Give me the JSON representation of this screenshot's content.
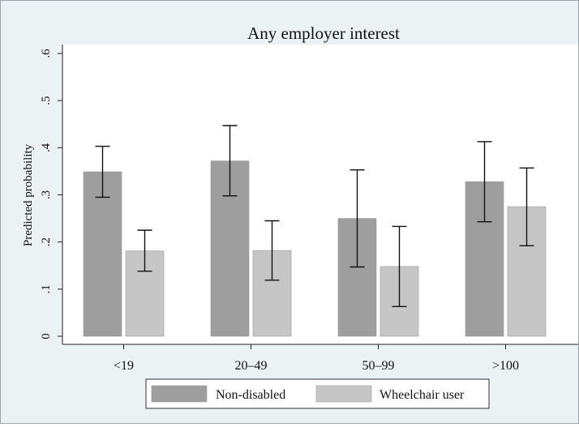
{
  "chart_data": {
    "type": "bar",
    "title": "Any employer interest",
    "xlabel": "",
    "ylabel": "Predicted probability",
    "ylim": [
      0,
      0.6
    ],
    "yticks": [
      0,
      0.1,
      0.2,
      0.3,
      0.4,
      0.5,
      0.6
    ],
    "ytick_labels": [
      "0",
      ".1",
      ".2",
      ".3",
      ".4",
      ".5",
      ".6"
    ],
    "categories": [
      "<19",
      "20–49",
      "50–99",
      ">100"
    ],
    "series": [
      {
        "name": "Non-disabled",
        "color": "#9e9e9e",
        "values": [
          0.349,
          0.372,
          0.25,
          0.328
        ],
        "ci_low": [
          0.295,
          0.298,
          0.147,
          0.243
        ],
        "ci_high": [
          0.403,
          0.447,
          0.353,
          0.413
        ]
      },
      {
        "name": "Wheelchair user",
        "color": "#c6c6c6",
        "values": [
          0.181,
          0.182,
          0.148,
          0.275
        ],
        "ci_low": [
          0.138,
          0.119,
          0.063,
          0.192
        ],
        "ci_high": [
          0.225,
          0.245,
          0.233,
          0.357
        ]
      }
    ],
    "error_bars": true,
    "grid": false,
    "legend": "bottom"
  }
}
